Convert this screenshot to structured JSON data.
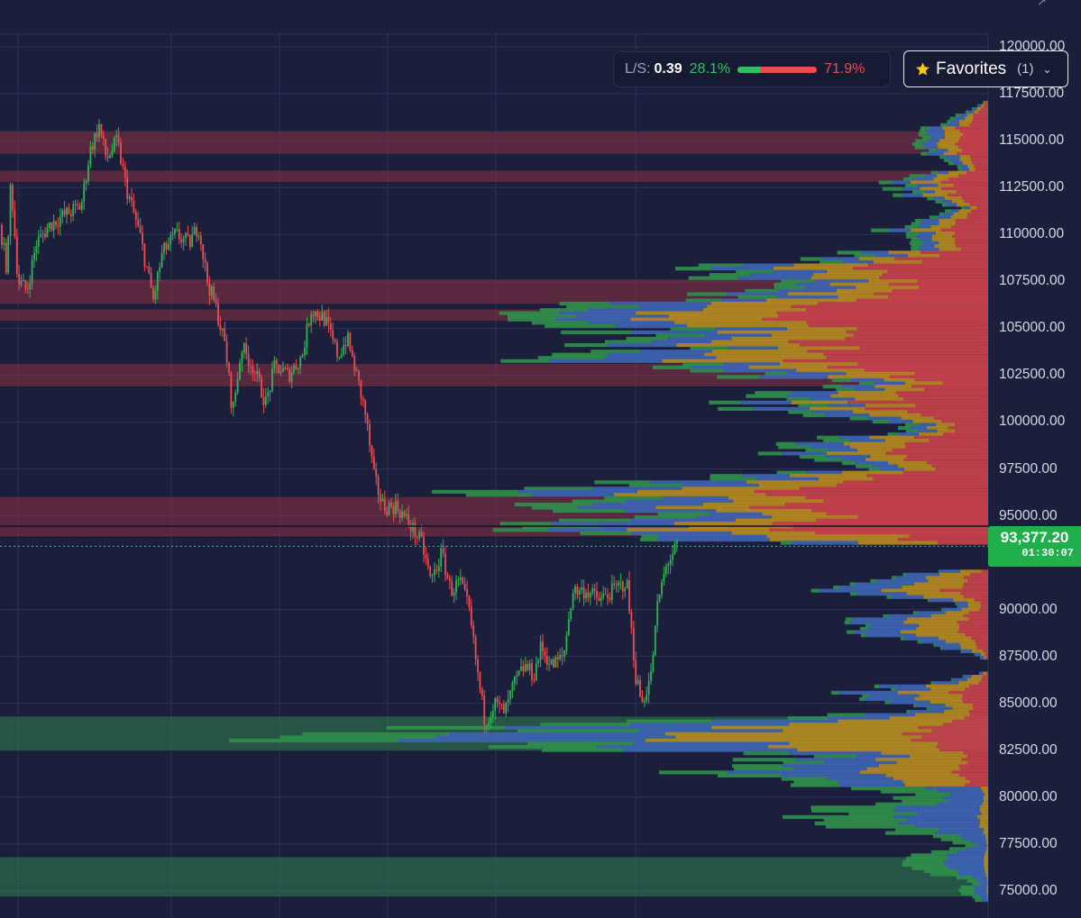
{
  "colors": {
    "background": "#1b1f3b",
    "grid": "#2b3054",
    "candle_up": "#2fb552",
    "candle_down": "#ee4d52",
    "resistance_zone": "#8a2f44",
    "support_zone": "#2f7a4c",
    "heatmap": [
      "#2f8f4a",
      "#3d64b3",
      "#b58a1f",
      "#c8414b"
    ],
    "price_tag": "#20b04b"
  },
  "ls_ratio": {
    "label": "L/S:",
    "value": "0.39",
    "long_pct": "28.1%",
    "short_pct": "71.9%",
    "long_fraction": 0.281
  },
  "favorites": {
    "star_icon": "star-icon",
    "label": "Favorites",
    "count": "(1)",
    "chevron_icon": "chevron-down-icon"
  },
  "current_price": {
    "value": "93,377.20",
    "timer": "01:30:07",
    "price": 93377.2
  },
  "price_axis": {
    "labels": [
      "120000.00",
      "117500.00",
      "115000.00",
      "112500.00",
      "110000.00",
      "107500.00",
      "105000.00",
      "102500.00",
      "100000.00",
      "97500.00",
      "95000.00",
      "90000.00",
      "87500.00",
      "85000.00",
      "82500.00",
      "80000.00",
      "77500.00",
      "75000.00"
    ],
    "values": [
      120000,
      117500,
      115000,
      112500,
      110000,
      107500,
      105000,
      102500,
      100000,
      97500,
      95000,
      90000,
      87500,
      85000,
      82500,
      80000,
      77500,
      75000
    ]
  },
  "zones": {
    "resistance": [
      [
        114300,
        115500
      ],
      [
        112800,
        113400
      ],
      [
        106300,
        107600
      ],
      [
        105400,
        106000
      ],
      [
        101900,
        103100
      ],
      [
        94800,
        96000
      ],
      [
        93900,
        94800
      ]
    ],
    "support": [
      [
        83100,
        84300
      ],
      [
        82500,
        83100
      ],
      [
        75300,
        76800
      ],
      [
        74700,
        75300
      ]
    ]
  },
  "chart_data": {
    "type": "candlestick-heatmap",
    "symbol_price_range": [
      73500,
      121000
    ],
    "path_points": [
      [
        0,
        110500
      ],
      [
        8,
        108000
      ],
      [
        12,
        113000
      ],
      [
        20,
        107500
      ],
      [
        30,
        107000
      ],
      [
        40,
        109500
      ],
      [
        55,
        110500
      ],
      [
        70,
        111000
      ],
      [
        90,
        111500
      ],
      [
        100,
        114500
      ],
      [
        110,
        115800
      ],
      [
        118,
        114000
      ],
      [
        130,
        115000
      ],
      [
        140,
        112500
      ],
      [
        155,
        110000
      ],
      [
        170,
        106500
      ],
      [
        180,
        109000
      ],
      [
        195,
        110000
      ],
      [
        210,
        109500
      ],
      [
        220,
        110500
      ],
      [
        230,
        107500
      ],
      [
        240,
        106000
      ],
      [
        250,
        104000
      ],
      [
        258,
        100500
      ],
      [
        268,
        104000
      ],
      [
        280,
        103000
      ],
      [
        295,
        101000
      ],
      [
        305,
        103000
      ],
      [
        320,
        102500
      ],
      [
        335,
        103500
      ],
      [
        345,
        106000
      ],
      [
        360,
        105500
      ],
      [
        375,
        103500
      ],
      [
        385,
        104500
      ],
      [
        398,
        102000
      ],
      [
        405,
        100500
      ],
      [
        415,
        97000
      ],
      [
        425,
        95500
      ],
      [
        440,
        95500
      ],
      [
        455,
        94500
      ],
      [
        468,
        93500
      ],
      [
        478,
        91500
      ],
      [
        490,
        93000
      ],
      [
        500,
        91000
      ],
      [
        510,
        91500
      ],
      [
        520,
        90000
      ],
      [
        530,
        86500
      ],
      [
        538,
        84000
      ],
      [
        548,
        85000
      ],
      [
        560,
        84500
      ],
      [
        570,
        86000
      ],
      [
        582,
        87000
      ],
      [
        592,
        86500
      ],
      [
        600,
        88000
      ],
      [
        612,
        87000
      ],
      [
        625,
        87500
      ],
      [
        635,
        91000
      ],
      [
        650,
        91000
      ],
      [
        665,
        90500
      ],
      [
        680,
        91000
      ],
      [
        695,
        91500
      ],
      [
        705,
        86500
      ],
      [
        712,
        85000
      ],
      [
        722,
        86500
      ],
      [
        730,
        90500
      ],
      [
        740,
        92500
      ],
      [
        752,
        93400
      ]
    ],
    "heatmap_note": "liquidation heat bars extending left from the price axis"
  }
}
